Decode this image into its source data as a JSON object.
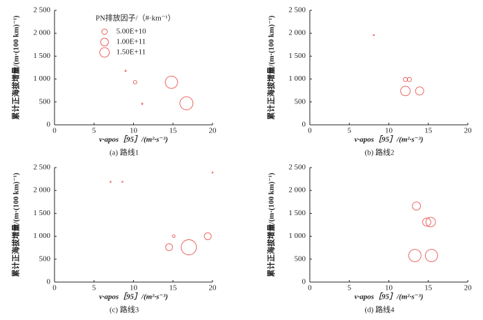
{
  "chart_data": [
    {
      "type": "bubble",
      "caption": "(a) 路线1",
      "xlabel": "v·apos［95］/(m²·s⁻³)",
      "ylabel": "累计正海拔增量/(m·(100 km)⁻¹)",
      "xlim": [
        0,
        20
      ],
      "ylim": [
        0,
        2500
      ],
      "xticks": [
        0,
        5,
        10,
        15,
        20
      ],
      "yticks": [
        0,
        500,
        {
          "value": 1000,
          "label": "1 000"
        },
        {
          "value": 1500,
          "label": "1 500"
        },
        {
          "value": 2000,
          "label": "2 000"
        },
        {
          "value": 2500,
          "label": "2 500"
        }
      ],
      "color": "#e8554e",
      "x": [
        9.0,
        10.2,
        11.1,
        14.8,
        16.7
      ],
      "values": [
        1180,
        930,
        460,
        930,
        470
      ],
      "sizes": [
        3000000000,
        20000000000,
        3000000000,
        250000000000,
        280000000000
      ],
      "legend": {
        "title": "PN排放因子/（#·km⁻¹）",
        "entries": [
          {
            "value": 50000000000,
            "label": "5.00E+10"
          },
          {
            "value": 100000000000,
            "label": "1.00E+11"
          },
          {
            "value": 150000000000,
            "label": "1.50E+11"
          }
        ]
      },
      "legend_loc": "upper center"
    },
    {
      "type": "bubble",
      "caption": "(b) 路线2",
      "xlabel": "v·apos［95］/(m²·s⁻³)",
      "ylabel": "累计正海拔增量/(m·(100 km)⁻¹)",
      "xlim": [
        0,
        20
      ],
      "ylim": [
        0,
        2500
      ],
      "xticks": [
        0,
        5,
        10,
        15,
        20
      ],
      "yticks": [
        0,
        500,
        {
          "value": 1000,
          "label": "1 000"
        },
        {
          "value": 1500,
          "label": "1 500"
        },
        {
          "value": 2000,
          "label": "2 000"
        },
        {
          "value": 2500,
          "label": "2 500"
        }
      ],
      "color": "#e8554e",
      "x": [
        8.1,
        12.1,
        12.6,
        12.1,
        13.9
      ],
      "values": [
        1960,
        990,
        990,
        740,
        740
      ],
      "sizes": [
        2000000000,
        30000000000,
        30000000000,
        150000000000,
        110000000000
      ]
    },
    {
      "type": "bubble",
      "caption": "(c) 路线3",
      "xlabel": "v·apos［95］/(m²·s⁻³)",
      "ylabel": "累计正海拔增量/(m·(100 km)⁻¹)",
      "xlim": [
        0,
        20
      ],
      "ylim": [
        0,
        2500
      ],
      "xticks": [
        0,
        5,
        10,
        15,
        20
      ],
      "yticks": [
        0,
        500,
        {
          "value": 1000,
          "label": "1 000"
        },
        {
          "value": 1500,
          "label": "1 500"
        },
        {
          "value": 2000,
          "label": "2 000"
        },
        {
          "value": 2500,
          "label": "2 500"
        }
      ],
      "color": "#e8554e",
      "x": [
        7.1,
        8.6,
        20.0,
        15.1,
        14.5,
        17.0,
        19.4
      ],
      "values": [
        2190,
        2190,
        2390,
        1000,
        760,
        760,
        1000
      ],
      "sizes": [
        2000000000,
        2000000000,
        2000000000,
        12000000000,
        80000000000,
        380000000000,
        80000000000
      ]
    },
    {
      "type": "bubble",
      "caption": "(d) 路线4",
      "xlabel": "v·apos［95］/(m²·s⁻³)",
      "ylabel": "累计正海拔增量/(m·(100 km)⁻¹)",
      "xlim": [
        0,
        20
      ],
      "ylim": [
        0,
        2500
      ],
      "xticks": [
        0,
        5,
        10,
        15,
        20
      ],
      "yticks": [
        0,
        500,
        {
          "value": 1000,
          "label": "1 000"
        },
        {
          "value": 1500,
          "label": "1 500"
        },
        {
          "value": 2000,
          "label": "2 000"
        },
        {
          "value": 2500,
          "label": "2 500"
        }
      ],
      "color": "#e8554e",
      "x": [
        13.5,
        14.8,
        15.3,
        13.3,
        15.4
      ],
      "values": [
        1660,
        1310,
        1310,
        580,
        580
      ],
      "sizes": [
        110000000000,
        110000000000,
        150000000000,
        250000000000,
        250000000000
      ]
    }
  ]
}
